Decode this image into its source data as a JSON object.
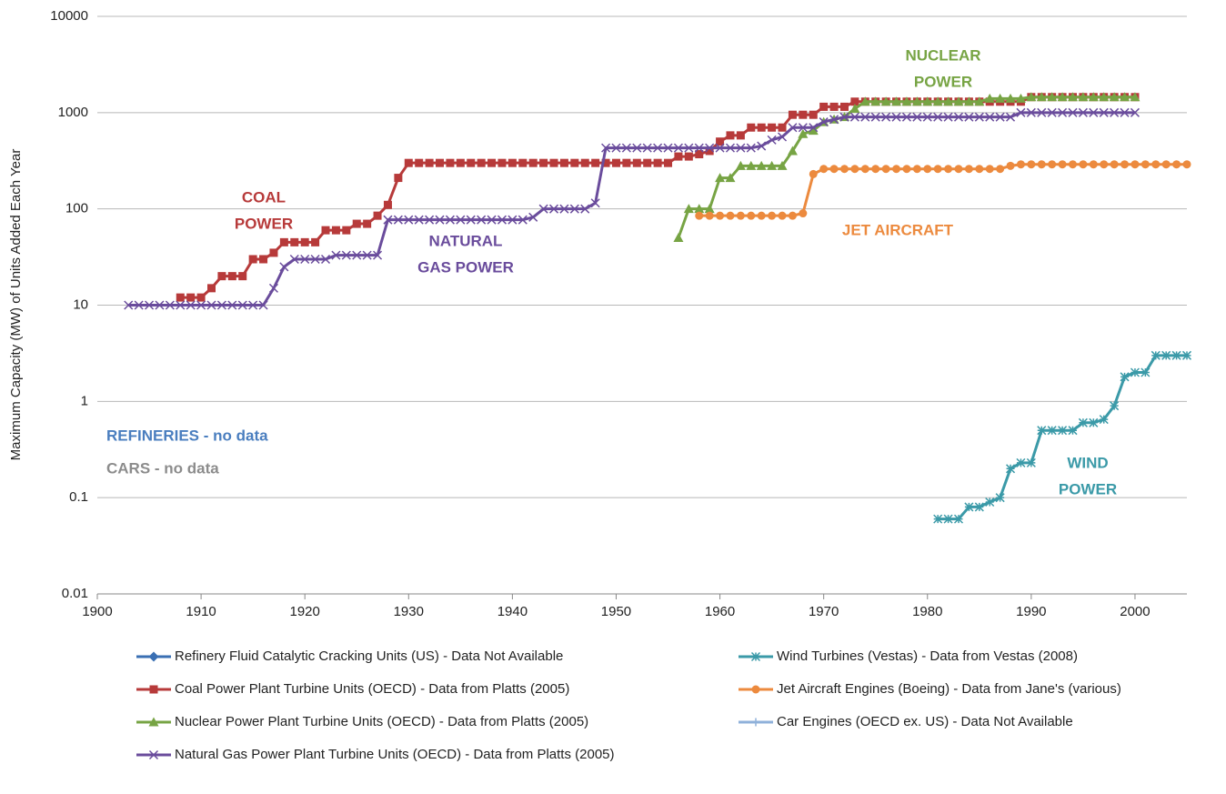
{
  "chart_data": {
    "type": "line",
    "ylabel": "Maximum Capacity (MW) of Units Added Each Year",
    "log_y": true,
    "grid": true,
    "xlim": [
      1900,
      2005
    ],
    "xticks": [
      1900,
      1910,
      1920,
      1930,
      1940,
      1950,
      1960,
      1970,
      1980,
      1990,
      2000
    ],
    "ylim": [
      0.01,
      10000
    ],
    "yticks": [
      0.01,
      0.1,
      1,
      10,
      100,
      1000,
      10000
    ],
    "annotations": [
      {
        "lines": [
          "NUCLEAR",
          "POWER"
        ],
        "color": "#77a444"
      },
      {
        "lines": [
          "COAL",
          "POWER"
        ],
        "color": "#b73a3a"
      },
      {
        "lines": [
          "NATURAL",
          "GAS POWER"
        ],
        "color": "#6a4c9c"
      },
      {
        "lines": [
          "JET AIRCRAFT"
        ],
        "color": "#ec8a3e"
      },
      {
        "lines": [
          "WIND",
          "POWER"
        ],
        "color": "#3b9aa8"
      },
      {
        "lines": [
          "REFINERIES - no data"
        ],
        "color": "#4a7ebf"
      },
      {
        "lines": [
          "CARS - no data"
        ],
        "color": "#8c8c8c"
      }
    ],
    "series": [
      {
        "name": "Refinery Fluid Catalytic Cracking Units (US) - Data Not Available",
        "color": "#3a6fb3",
        "marker": "diamond",
        "x": [],
        "values": []
      },
      {
        "name": "Coal Power Plant Turbine Units (OECD) - Data from Platts (2005)",
        "color": "#b73a3a",
        "marker": "square",
        "x": [
          1908,
          1909,
          1910,
          1911,
          1912,
          1913,
          1914,
          1915,
          1916,
          1917,
          1918,
          1919,
          1920,
          1921,
          1922,
          1923,
          1924,
          1925,
          1926,
          1927,
          1928,
          1929,
          1930,
          1931,
          1932,
          1933,
          1934,
          1935,
          1936,
          1937,
          1938,
          1939,
          1940,
          1941,
          1942,
          1943,
          1944,
          1945,
          1946,
          1947,
          1948,
          1949,
          1950,
          1951,
          1952,
          1953,
          1954,
          1955,
          1956,
          1957,
          1958,
          1959,
          1960,
          1961,
          1962,
          1963,
          1964,
          1965,
          1966,
          1967,
          1968,
          1969,
          1970,
          1971,
          1972,
          1973,
          1974,
          1975,
          1976,
          1977,
          1978,
          1979,
          1980,
          1981,
          1982,
          1983,
          1984,
          1985,
          1986,
          1987,
          1988,
          1989,
          1990,
          1991,
          1992,
          1993,
          1994,
          1995,
          1996,
          1997,
          1998,
          1999,
          2000
        ],
        "values": [
          12,
          12,
          12,
          15,
          20,
          20,
          20,
          30,
          30,
          35,
          45,
          45,
          45,
          45,
          60,
          60,
          60,
          70,
          70,
          85,
          110,
          210,
          300,
          300,
          300,
          300,
          300,
          300,
          300,
          300,
          300,
          300,
          300,
          300,
          300,
          300,
          300,
          300,
          300,
          300,
          300,
          300,
          300,
          300,
          300,
          300,
          300,
          300,
          350,
          350,
          370,
          400,
          500,
          580,
          580,
          700,
          700,
          700,
          700,
          950,
          950,
          950,
          1150,
          1150,
          1150,
          1300,
          1300,
          1300,
          1300,
          1300,
          1300,
          1300,
          1300,
          1300,
          1300,
          1300,
          1300,
          1300,
          1300,
          1300,
          1300,
          1300,
          1450,
          1450,
          1450,
          1450,
          1450,
          1450,
          1450,
          1450,
          1450,
          1450,
          1450
        ]
      },
      {
        "name": "Nuclear Power Plant Turbine Units (OECD) - Data from Platts (2005)",
        "color": "#77a444",
        "marker": "triangle",
        "x": [
          1956,
          1957,
          1958,
          1959,
          1960,
          1961,
          1962,
          1963,
          1964,
          1965,
          1966,
          1967,
          1968,
          1969,
          1970,
          1971,
          1972,
          1973,
          1974,
          1975,
          1976,
          1977,
          1978,
          1979,
          1980,
          1981,
          1982,
          1983,
          1984,
          1985,
          1986,
          1987,
          1988,
          1989,
          1990,
          1991,
          1992,
          1993,
          1994,
          1995,
          1996,
          1997,
          1998,
          1999,
          2000
        ],
        "values": [
          50,
          100,
          100,
          100,
          210,
          210,
          280,
          280,
          280,
          280,
          280,
          400,
          600,
          650,
          800,
          850,
          900,
          1100,
          1300,
          1300,
          1300,
          1300,
          1300,
          1300,
          1300,
          1300,
          1300,
          1300,
          1300,
          1300,
          1400,
          1400,
          1400,
          1400,
          1450,
          1450,
          1450,
          1450,
          1450,
          1450,
          1450,
          1450,
          1450,
          1450,
          1450
        ]
      },
      {
        "name": "Natural Gas Power Plant Turbine Units (OECD) - Data from Platts (2005)",
        "color": "#6a4c9c",
        "marker": "x",
        "x": [
          1903,
          1904,
          1905,
          1906,
          1907,
          1908,
          1909,
          1910,
          1911,
          1912,
          1913,
          1914,
          1915,
          1916,
          1917,
          1918,
          1919,
          1920,
          1921,
          1922,
          1923,
          1924,
          1925,
          1926,
          1927,
          1928,
          1929,
          1930,
          1931,
          1932,
          1933,
          1934,
          1935,
          1936,
          1937,
          1938,
          1939,
          1940,
          1941,
          1942,
          1943,
          1944,
          1945,
          1946,
          1947,
          1948,
          1949,
          1950,
          1951,
          1952,
          1953,
          1954,
          1955,
          1956,
          1957,
          1958,
          1959,
          1960,
          1961,
          1962,
          1963,
          1964,
          1965,
          1966,
          1967,
          1968,
          1969,
          1970,
          1971,
          1972,
          1973,
          1974,
          1975,
          1976,
          1977,
          1978,
          1979,
          1980,
          1981,
          1982,
          1983,
          1984,
          1985,
          1986,
          1987,
          1988,
          1989,
          1990,
          1991,
          1992,
          1993,
          1994,
          1995,
          1996,
          1997,
          1998,
          1999,
          2000
        ],
        "values": [
          10,
          10,
          10,
          10,
          10,
          10,
          10,
          10,
          10,
          10,
          10,
          10,
          10,
          10,
          15,
          25,
          30,
          30,
          30,
          30,
          33,
          33,
          33,
          33,
          33,
          77,
          77,
          77,
          77,
          77,
          77,
          77,
          77,
          77,
          77,
          77,
          77,
          77,
          77,
          82,
          100,
          100,
          100,
          100,
          100,
          115,
          430,
          430,
          430,
          430,
          430,
          430,
          430,
          430,
          430,
          430,
          430,
          430,
          430,
          430,
          430,
          450,
          520,
          560,
          700,
          700,
          700,
          800,
          850,
          900,
          900,
          900,
          900,
          900,
          900,
          900,
          900,
          900,
          900,
          900,
          900,
          900,
          900,
          900,
          900,
          900,
          1000,
          1000,
          1000,
          1000,
          1000,
          1000,
          1000,
          1000,
          1000,
          1000,
          1000,
          1000
        ]
      },
      {
        "name": "Wind Turbines (Vestas) - Data from Vestas (2008)",
        "color": "#3b9aa8",
        "marker": "asterisk",
        "x": [
          1981,
          1982,
          1983,
          1984,
          1985,
          1986,
          1987,
          1988,
          1989,
          1990,
          1991,
          1992,
          1993,
          1994,
          1995,
          1996,
          1997,
          1998,
          1999,
          2000,
          2001,
          2002,
          2003,
          2004,
          2005
        ],
        "values": [
          0.06,
          0.06,
          0.06,
          0.08,
          0.08,
          0.09,
          0.1,
          0.2,
          0.23,
          0.23,
          0.5,
          0.5,
          0.5,
          0.5,
          0.6,
          0.6,
          0.65,
          0.9,
          1.8,
          2,
          2,
          3,
          3,
          3,
          3
        ]
      },
      {
        "name": "Jet Aircraft Engines (Boeing) - Data from Jane's (various)",
        "color": "#ec8a3e",
        "marker": "circle",
        "x": [
          1958,
          1959,
          1960,
          1961,
          1962,
          1963,
          1964,
          1965,
          1966,
          1967,
          1968,
          1969,
          1970,
          1971,
          1972,
          1973,
          1974,
          1975,
          1976,
          1977,
          1978,
          1979,
          1980,
          1981,
          1982,
          1983,
          1984,
          1985,
          1986,
          1987,
          1988,
          1989,
          1990,
          1991,
          1992,
          1993,
          1994,
          1995,
          1996,
          1997,
          1998,
          1999,
          2000,
          2001,
          2002,
          2003,
          2004,
          2005
        ],
        "values": [
          85,
          85,
          85,
          85,
          85,
          85,
          85,
          85,
          85,
          85,
          90,
          230,
          260,
          260,
          260,
          260,
          260,
          260,
          260,
          260,
          260,
          260,
          260,
          260,
          260,
          260,
          260,
          260,
          260,
          260,
          280,
          290,
          290,
          290,
          290,
          290,
          290,
          290,
          290,
          290,
          290,
          290,
          290,
          290,
          290,
          290,
          290,
          290
        ]
      },
      {
        "name": "Car Engines (OECD ex. US) - Data Not Available",
        "color": "#8fb1da",
        "marker": "plus",
        "x": [],
        "values": []
      }
    ]
  }
}
